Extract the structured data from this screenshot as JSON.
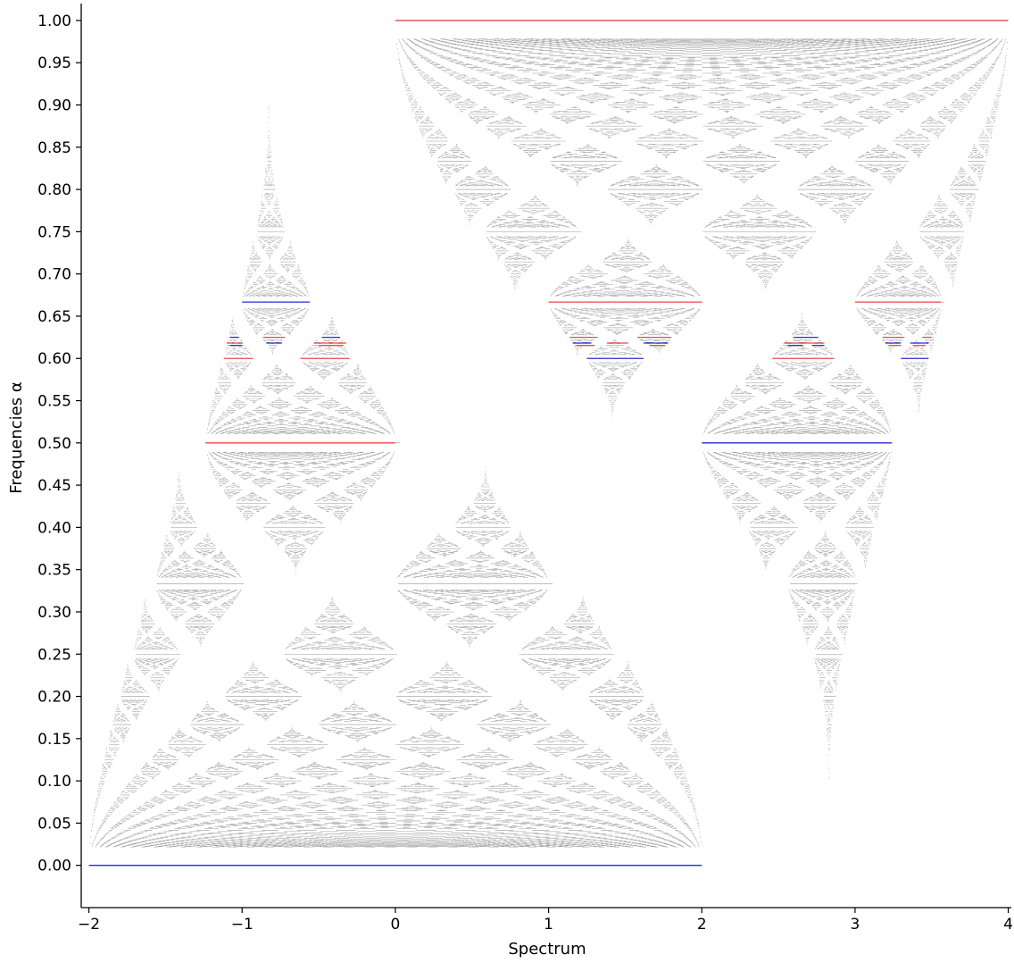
{
  "chart_data": {
    "type": "scatter",
    "title": "",
    "xlabel": "Spectrum",
    "ylabel": "Frequencies α",
    "xlim": [
      -2.05,
      4.02
    ],
    "ylim": [
      -0.05,
      1.02
    ],
    "xticks": [
      -2,
      -1,
      0,
      1,
      2,
      3,
      4
    ],
    "xtick_labels": [
      "−2",
      "−1",
      "0",
      "1",
      "2",
      "3",
      "4"
    ],
    "yticks": [
      0.0,
      0.05,
      0.1,
      0.15,
      0.2,
      0.25,
      0.3,
      0.35,
      0.4,
      0.45,
      0.5,
      0.55,
      0.6,
      0.65,
      0.7,
      0.75,
      0.8,
      0.85,
      0.9,
      0.95,
      1.0
    ],
    "ytick_labels": [
      "0.00",
      "0.05",
      "0.10",
      "0.15",
      "0.20",
      "0.25",
      "0.30",
      "0.35",
      "0.40",
      "0.45",
      "0.50",
      "0.55",
      "0.60",
      "0.65",
      "0.70",
      "0.75",
      "0.80",
      "0.85",
      "0.90",
      "0.95",
      "1.00"
    ],
    "grid": false,
    "colors": {
      "spectrum": "#999999",
      "red": "#e8474b",
      "blue": "#2a2ad8",
      "axis": "#000000"
    },
    "spectrum_points": {
      "description": "generated",
      "max_denominator": 46,
      "alpha_range": [
        0.0,
        1.0
      ]
    },
    "segments": [
      {
        "color": "blue",
        "x": [
          -2.0,
          2.0
        ],
        "y": 0.0
      },
      {
        "color": "red",
        "x": [
          0.0,
          4.0
        ],
        "y": 1.0
      },
      {
        "color": "red",
        "x": [
          -1.24,
          0.0
        ],
        "y": 0.5
      },
      {
        "color": "blue",
        "x": [
          2.0,
          3.24
        ],
        "y": 0.5
      },
      {
        "color": "blue",
        "x": [
          -1.0,
          -0.56
        ],
        "y": 0.6667
      },
      {
        "color": "red",
        "x": [
          1.0,
          2.0
        ],
        "y": 0.6667
      },
      {
        "color": "red",
        "x": [
          3.0,
          3.56
        ],
        "y": 0.6667
      },
      {
        "color": "red",
        "x": [
          -1.12,
          -0.93
        ],
        "y": 0.6
      },
      {
        "color": "red",
        "x": [
          -0.62,
          -0.3
        ],
        "y": 0.6
      },
      {
        "color": "blue",
        "x": [
          1.25,
          1.62
        ],
        "y": 0.6
      },
      {
        "color": "red",
        "x": [
          2.46,
          2.86
        ],
        "y": 0.6
      },
      {
        "color": "blue",
        "x": [
          3.3,
          3.48
        ],
        "y": 0.6
      },
      {
        "color": "blue",
        "x": [
          -1.08,
          -1.02
        ],
        "y": 0.625
      },
      {
        "color": "red",
        "x": [
          -0.86,
          -0.72
        ],
        "y": 0.625
      },
      {
        "color": "blue",
        "x": [
          -0.48,
          -0.36
        ],
        "y": 0.625
      },
      {
        "color": "red",
        "x": [
          1.14,
          1.32
        ],
        "y": 0.625
      },
      {
        "color": "red",
        "x": [
          1.58,
          1.8
        ],
        "y": 0.625
      },
      {
        "color": "blue",
        "x": [
          2.6,
          2.76
        ],
        "y": 0.625
      },
      {
        "color": "red",
        "x": [
          3.18,
          3.32
        ],
        "y": 0.625
      },
      {
        "color": "red",
        "x": [
          3.44,
          3.5
        ],
        "y": 0.625
      },
      {
        "color": "red",
        "x": [
          -1.1,
          -1.0
        ],
        "y": 0.6182
      },
      {
        "color": "blue",
        "x": [
          -0.84,
          -0.74
        ],
        "y": 0.6182
      },
      {
        "color": "red",
        "x": [
          -0.53,
          -0.32
        ],
        "y": 0.6182
      },
      {
        "color": "blue",
        "x": [
          1.16,
          1.28
        ],
        "y": 0.6182
      },
      {
        "color": "red",
        "x": [
          1.38,
          1.52
        ],
        "y": 0.6182
      },
      {
        "color": "blue",
        "x": [
          1.62,
          1.78
        ],
        "y": 0.6182
      },
      {
        "color": "red",
        "x": [
          2.54,
          2.8
        ],
        "y": 0.6182
      },
      {
        "color": "blue",
        "x": [
          3.2,
          3.3
        ],
        "y": 0.6182
      },
      {
        "color": "blue",
        "x": [
          3.36,
          3.48
        ],
        "y": 0.6182
      },
      {
        "color": "blue",
        "x": [
          -1.08,
          -1.0
        ],
        "y": 0.6154
      },
      {
        "color": "red",
        "x": [
          -0.5,
          -0.34
        ],
        "y": 0.6154
      },
      {
        "color": "red",
        "x": [
          1.18,
          1.3
        ],
        "y": 0.6154
      },
      {
        "color": "red",
        "x": [
          1.66,
          1.76
        ],
        "y": 0.6154
      },
      {
        "color": "blue",
        "x": [
          2.56,
          2.66
        ],
        "y": 0.6154
      },
      {
        "color": "blue",
        "x": [
          2.72,
          2.8
        ],
        "y": 0.6154
      },
      {
        "color": "red",
        "x": [
          3.22,
          3.3
        ],
        "y": 0.6154
      },
      {
        "color": "red",
        "x": [
          3.38,
          3.46
        ],
        "y": 0.6154
      }
    ]
  }
}
